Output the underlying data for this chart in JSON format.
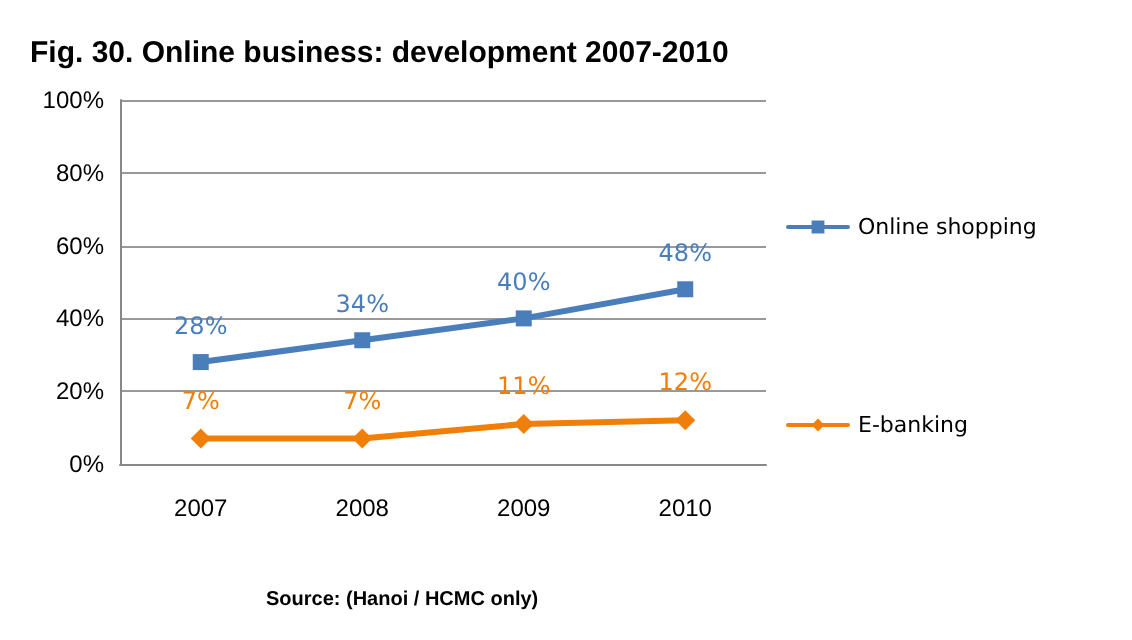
{
  "chart_data": {
    "type": "line",
    "title": "Fig. 30. Online business: development 2007-2010",
    "categories": [
      "2007",
      "2008",
      "2009",
      "2010"
    ],
    "series": [
      {
        "name": "Online shopping",
        "color": "#4a7ebb",
        "marker": "square",
        "values": [
          28,
          34,
          40,
          48
        ],
        "value_labels": [
          "28%",
          "34%",
          "40%",
          "48%"
        ]
      },
      {
        "name": "E-banking",
        "color": "#f07f09",
        "marker": "diamond",
        "values": [
          7,
          7,
          11,
          12
        ],
        "value_labels": [
          "7%",
          "7%",
          "11%",
          "12%"
        ]
      }
    ],
    "ylim": [
      0,
      100
    ],
    "yticks": [
      {
        "value": 0,
        "label": "0%"
      },
      {
        "value": 20,
        "label": "20%"
      },
      {
        "value": 40,
        "label": "40%"
      },
      {
        "value": 60,
        "label": "60%"
      },
      {
        "value": 80,
        "label": "80%"
      },
      {
        "value": 100,
        "label": "100%"
      }
    ],
    "grid": "y",
    "legend": "right",
    "annotations": [
      "Source: (Hanoi / HCMC only)"
    ]
  }
}
